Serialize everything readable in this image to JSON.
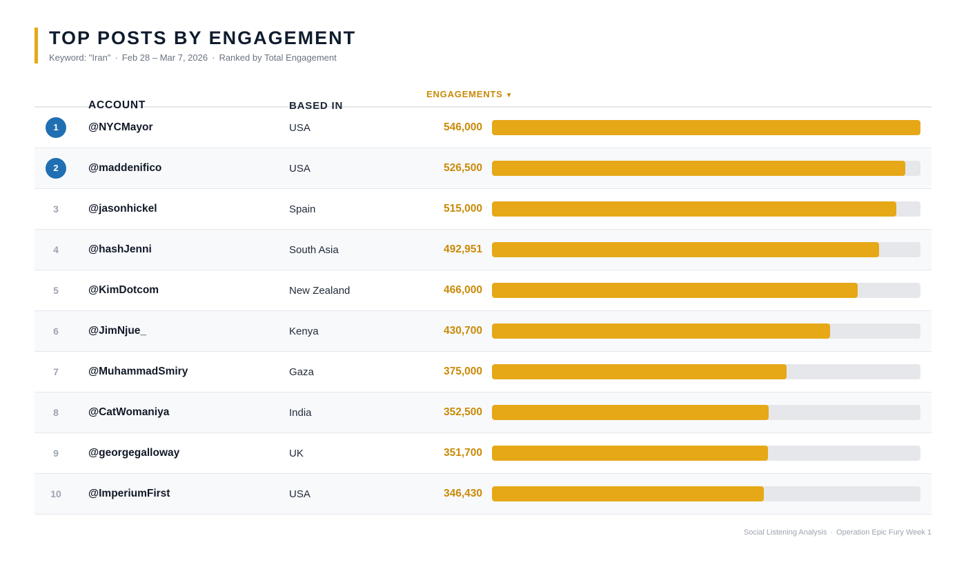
{
  "header": {
    "title": "TOP POSTS BY ENGAGEMENT",
    "keyword": "Keyword: \"Iran\"",
    "date_range": "Feb 28 – Mar 7, 2026",
    "ranking": "Ranked by Total Engagement"
  },
  "columns": {
    "account": "ACCOUNT",
    "based_in": "BASED IN",
    "engagements": "ENGAGEMENTS",
    "sort_arrow": "▼"
  },
  "colors": {
    "accent": "#e6a817",
    "value_text": "#c98a07",
    "rank_badge": "#1f6fb2",
    "track": "#e5e7eb"
  },
  "chart_data": {
    "type": "bar",
    "orientation": "horizontal",
    "title": "TOP POSTS BY ENGAGEMENT",
    "value_label": "Engagements",
    "xlim": [
      0,
      546000
    ],
    "rows": [
      {
        "rank": "1",
        "account": "@NYCMayor",
        "based_in": "USA",
        "value": 546000,
        "value_label": "546,000"
      },
      {
        "rank": "2",
        "account": "@maddenifico",
        "based_in": "USA",
        "value": 526500,
        "value_label": "526,500"
      },
      {
        "rank": "3",
        "account": "@jasonhickel",
        "based_in": "Spain",
        "value": 515000,
        "value_label": "515,000"
      },
      {
        "rank": "4",
        "account": "@hashJenni",
        "based_in": "South Asia",
        "value": 492951,
        "value_label": "492,951"
      },
      {
        "rank": "5",
        "account": "@KimDotcom",
        "based_in": "New Zealand",
        "value": 466000,
        "value_label": "466,000"
      },
      {
        "rank": "6",
        "account": "@JimNjue_",
        "based_in": "Kenya",
        "value": 430700,
        "value_label": "430,700"
      },
      {
        "rank": "7",
        "account": "@MuhammadSmiry",
        "based_in": "Gaza",
        "value": 375000,
        "value_label": "375,000"
      },
      {
        "rank": "8",
        "account": "@CatWomaniya",
        "based_in": "India",
        "value": 352500,
        "value_label": "352,500"
      },
      {
        "rank": "9",
        "account": "@georgegalloway",
        "based_in": "UK",
        "value": 351700,
        "value_label": "351,700"
      },
      {
        "rank": "10",
        "account": "@ImperiumFirst",
        "based_in": "USA",
        "value": 346430,
        "value_label": "346,430"
      }
    ]
  },
  "footer": {
    "source": "Social Listening Analysis",
    "context": "Operation Epic Fury Week 1"
  }
}
